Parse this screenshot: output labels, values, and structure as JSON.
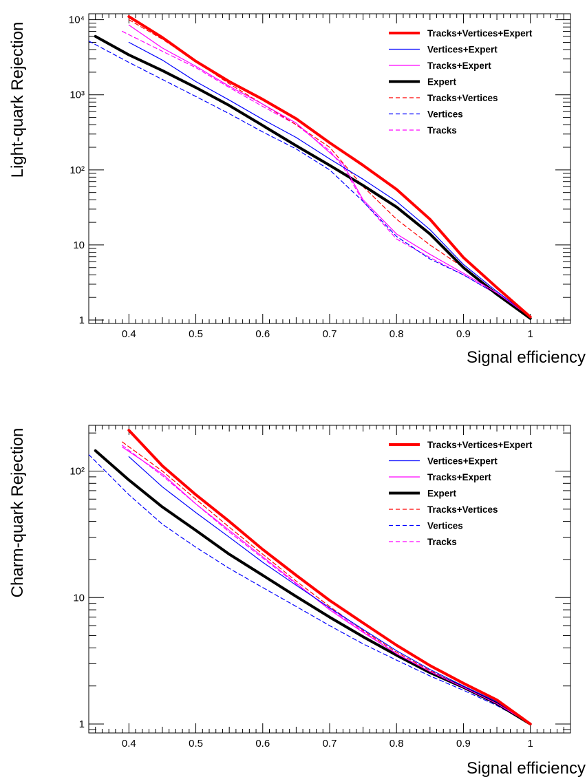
{
  "series_styles": [
    {
      "name": "Tracks+Vertices+Expert",
      "color": "#ff0000",
      "width": 4,
      "dash": "solid"
    },
    {
      "name": "Vertices+Expert",
      "color": "#0000ff",
      "width": 1.2,
      "dash": "solid"
    },
    {
      "name": "Tracks+Expert",
      "color": "#ff00ff",
      "width": 1.2,
      "dash": "solid"
    },
    {
      "name": "Expert",
      "color": "#000000",
      "width": 4,
      "dash": "solid"
    },
    {
      "name": "Tracks+Vertices",
      "color": "#ff0000",
      "width": 1.2,
      "dash": "dashed"
    },
    {
      "name": "Vertices",
      "color": "#0000ff",
      "width": 1.2,
      "dash": "dashed"
    },
    {
      "name": "Tracks",
      "color": "#ff00ff",
      "width": 1.2,
      "dash": "dashed"
    }
  ],
  "chart_data": [
    {
      "type": "line",
      "xlabel": "Signal efficiency",
      "ylabel": "Light-quark Rejection",
      "xlim": [
        0.34,
        1.06
      ],
      "ylim": [
        0.9,
        12000
      ],
      "yscale": "log",
      "grid": false,
      "legend_position": "top-right",
      "x_ticks": [
        "0.4",
        "0.5",
        "0.6",
        "0.7",
        "0.8",
        "0.9",
        "1"
      ],
      "y_tick_values": [
        1,
        10,
        100,
        1000,
        10000
      ],
      "y_ticks": [
        "1",
        "10",
        "10²",
        "10³",
        "10⁴"
      ],
      "series": [
        {
          "name": "Tracks+Vertices+Expert",
          "x": [
            0.4,
            0.45,
            0.5,
            0.55,
            0.6,
            0.65,
            0.7,
            0.75,
            0.8,
            0.85,
            0.9,
            0.95,
            1.0
          ],
          "y": [
            11000,
            5800,
            2800,
            1500,
            870,
            480,
            230,
            115,
            55,
            22,
            6.8,
            2.7,
            1.1
          ]
        },
        {
          "name": "Vertices+Expert",
          "x": [
            0.4,
            0.45,
            0.5,
            0.55,
            0.6,
            0.65,
            0.7,
            0.75,
            0.8,
            0.85,
            0.9,
            0.95,
            1.0
          ],
          "y": [
            5000,
            2900,
            1500,
            850,
            470,
            270,
            140,
            75,
            38,
            16,
            5.5,
            2.4,
            1.1
          ]
        },
        {
          "name": "Tracks+Expert",
          "x": [
            0.4,
            0.45,
            0.5,
            0.55,
            0.6,
            0.65,
            0.7,
            0.72,
            0.75,
            0.8,
            0.85,
            0.9,
            0.95,
            1.0
          ],
          "y": [
            8500,
            4200,
            2400,
            1300,
            750,
            420,
            170,
            120,
            40,
            14,
            7.5,
            4.2,
            2.3,
            1.1
          ]
        },
        {
          "name": "Expert",
          "x": [
            0.35,
            0.4,
            0.45,
            0.5,
            0.55,
            0.6,
            0.65,
            0.7,
            0.75,
            0.8,
            0.85,
            0.9,
            0.95,
            1.0
          ],
          "y": [
            6000,
            3400,
            2100,
            1250,
            720,
            390,
            210,
            115,
            62,
            32,
            14,
            5,
            2.2,
            1.05
          ]
        },
        {
          "name": "Tracks+Vertices",
          "x": [
            0.4,
            0.45,
            0.5,
            0.55,
            0.6,
            0.65,
            0.7,
            0.75,
            0.8,
            0.85,
            0.9,
            0.95,
            1.0
          ],
          "y": [
            10000,
            5500,
            2800,
            1400,
            750,
            400,
            200,
            60,
            22,
            10,
            5,
            2.3,
            1.1
          ]
        },
        {
          "name": "Vertices",
          "x": [
            0.34,
            0.4,
            0.45,
            0.5,
            0.55,
            0.6,
            0.65,
            0.7,
            0.75,
            0.8,
            0.85,
            0.9,
            0.95,
            1.0
          ],
          "y": [
            5200,
            2700,
            1600,
            950,
            560,
            320,
            190,
            100,
            38,
            13,
            6.5,
            4,
            2.2,
            1.05
          ]
        },
        {
          "name": "Tracks",
          "x": [
            0.39,
            0.45,
            0.5,
            0.55,
            0.6,
            0.65,
            0.7,
            0.72,
            0.75,
            0.8,
            0.85,
            0.9,
            0.95,
            1.0
          ],
          "y": [
            7000,
            3800,
            2300,
            1250,
            700,
            400,
            180,
            110,
            38,
            12,
            6.8,
            4,
            2.2,
            1.05
          ]
        }
      ]
    },
    {
      "type": "line",
      "xlabel": "Signal efficiency",
      "ylabel": "Charm-quark Rejection",
      "xlim": [
        0.34,
        1.06
      ],
      "ylim": [
        0.85,
        230
      ],
      "yscale": "log",
      "grid": false,
      "legend_position": "top-right",
      "x_ticks": [
        "0.4",
        "0.5",
        "0.6",
        "0.7",
        "0.8",
        "0.9",
        "1"
      ],
      "y_tick_values": [
        1,
        10,
        100
      ],
      "y_ticks": [
        "1",
        "10",
        "10²"
      ],
      "series": [
        {
          "name": "Tracks+Vertices+Expert",
          "x": [
            0.4,
            0.45,
            0.5,
            0.55,
            0.6,
            0.65,
            0.7,
            0.75,
            0.8,
            0.85,
            0.9,
            0.95,
            1.0
          ],
          "y": [
            210,
            110,
            65,
            40,
            24,
            15,
            9.5,
            6.3,
            4.2,
            2.9,
            2.1,
            1.55,
            1.0
          ]
        },
        {
          "name": "Vertices+Expert",
          "x": [
            0.4,
            0.45,
            0.5,
            0.55,
            0.6,
            0.65,
            0.7,
            0.75,
            0.8,
            0.85,
            0.9,
            0.95,
            1.0
          ],
          "y": [
            130,
            75,
            47,
            30,
            19,
            12.5,
            8.3,
            5.6,
            3.8,
            2.7,
            2.0,
            1.5,
            1.0
          ]
        },
        {
          "name": "Tracks+Expert",
          "x": [
            0.39,
            0.45,
            0.5,
            0.55,
            0.6,
            0.65,
            0.7,
            0.75,
            0.8,
            0.85,
            0.9,
            0.95,
            1.0
          ],
          "y": [
            155,
            95,
            55,
            34,
            21,
            13,
            8.0,
            5.3,
            3.6,
            2.6,
            1.95,
            1.45,
            1.0
          ]
        },
        {
          "name": "Expert",
          "x": [
            0.35,
            0.4,
            0.45,
            0.5,
            0.55,
            0.6,
            0.65,
            0.7,
            0.75,
            0.8,
            0.85,
            0.9,
            0.95,
            1.0
          ],
          "y": [
            145,
            85,
            52,
            34,
            22,
            15,
            10.2,
            7.0,
            4.9,
            3.5,
            2.55,
            1.95,
            1.45,
            1.0
          ]
        },
        {
          "name": "Tracks+Vertices",
          "x": [
            0.39,
            0.45,
            0.5,
            0.55,
            0.6,
            0.65,
            0.7,
            0.75,
            0.8,
            0.85,
            0.9,
            0.95,
            1.0
          ],
          "y": [
            170,
            100,
            60,
            36,
            22,
            13.5,
            8.5,
            5.5,
            3.7,
            2.65,
            1.95,
            1.45,
            1.0
          ]
        },
        {
          "name": "Vertices",
          "x": [
            0.34,
            0.4,
            0.45,
            0.5,
            0.55,
            0.6,
            0.65,
            0.7,
            0.75,
            0.8,
            0.85,
            0.9,
            0.95,
            1.0
          ],
          "y": [
            135,
            65,
            38,
            25,
            17,
            12,
            8.5,
            6.0,
            4.3,
            3.2,
            2.4,
            1.85,
            1.4,
            1.0
          ]
        },
        {
          "name": "Tracks",
          "x": [
            0.39,
            0.45,
            0.5,
            0.55,
            0.6,
            0.65,
            0.7,
            0.75,
            0.8,
            0.85,
            0.9,
            0.95,
            1.0
          ],
          "y": [
            160,
            92,
            55,
            33,
            20.5,
            12.8,
            8.2,
            5.4,
            3.6,
            2.6,
            1.95,
            1.45,
            1.0
          ]
        }
      ]
    }
  ]
}
